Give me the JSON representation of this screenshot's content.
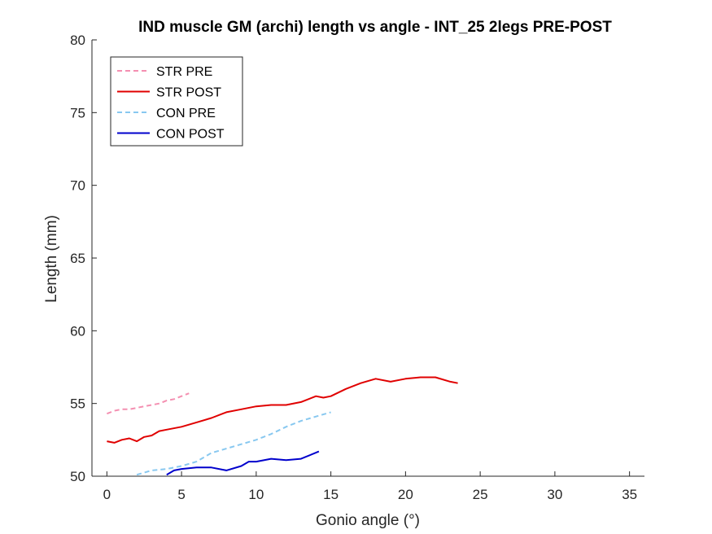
{
  "chart_data": {
    "type": "line",
    "title": "IND muscle GM (archi) length vs angle - INT_25 2legs PRE-POST",
    "xlabel": "Gonio angle (°)",
    "ylabel": "Length (mm)",
    "xlim": [
      -1,
      36
    ],
    "ylim": [
      50,
      80
    ],
    "xticks": [
      0,
      5,
      10,
      15,
      20,
      25,
      30,
      35
    ],
    "yticks": [
      50,
      55,
      60,
      65,
      70,
      75,
      80
    ],
    "legend_position": "top-left",
    "grid": false,
    "series": [
      {
        "name": "STR PRE",
        "color": "#f48fb1",
        "style": "dashed",
        "x": [
          0,
          0.5,
          1,
          1.5,
          2,
          2.5,
          3,
          3.5,
          4,
          4.5,
          5,
          5.5
        ],
        "y": [
          54.3,
          54.5,
          54.6,
          54.6,
          54.7,
          54.8,
          54.9,
          55.0,
          55.2,
          55.3,
          55.5,
          55.7
        ]
      },
      {
        "name": "STR POST",
        "color": "#e00000",
        "style": "solid",
        "x": [
          0,
          0.5,
          1,
          1.5,
          2,
          2.5,
          3,
          3.5,
          4,
          5,
          6,
          7,
          8,
          9,
          10,
          11,
          12,
          13,
          14,
          14.5,
          15,
          16,
          17,
          18,
          19,
          20,
          21,
          22,
          23,
          23.5
        ],
        "y": [
          52.4,
          52.3,
          52.5,
          52.6,
          52.4,
          52.7,
          52.8,
          53.1,
          53.2,
          53.4,
          53.7,
          54.0,
          54.4,
          54.6,
          54.8,
          54.9,
          54.9,
          55.1,
          55.5,
          55.4,
          55.5,
          56.0,
          56.4,
          56.7,
          56.5,
          56.7,
          56.8,
          56.8,
          56.5,
          56.4
        ]
      },
      {
        "name": "CON PRE",
        "color": "#88c8f0",
        "style": "dashed",
        "x": [
          2,
          3,
          4,
          5,
          6,
          7,
          8,
          9,
          10,
          11,
          12,
          13,
          14,
          15
        ],
        "y": [
          50.1,
          50.4,
          50.5,
          50.7,
          51.0,
          51.6,
          51.9,
          52.2,
          52.5,
          52.9,
          53.4,
          53.8,
          54.1,
          54.4
        ]
      },
      {
        "name": "CON POST",
        "color": "#0000cc",
        "style": "solid",
        "x": [
          4,
          4.5,
          5,
          6,
          7,
          8,
          9,
          9.5,
          10,
          11,
          12,
          13,
          14.2
        ],
        "y": [
          50.1,
          50.4,
          50.5,
          50.6,
          50.6,
          50.4,
          50.7,
          51.0,
          51.0,
          51.2,
          51.1,
          51.2,
          51.7
        ]
      }
    ]
  }
}
